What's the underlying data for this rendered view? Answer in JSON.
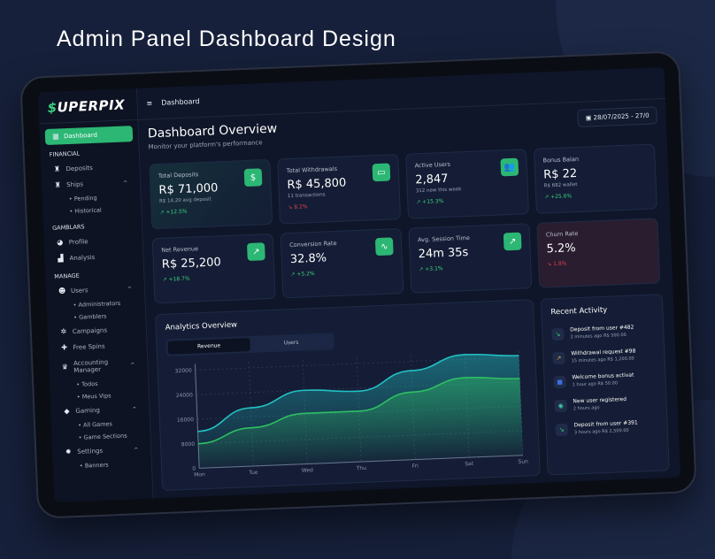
{
  "headline": "Admin Panel Dashboard Design",
  "colors": {
    "accent": "#2cb774",
    "background": "#0f1629",
    "card": "#141d35",
    "up": "#3ccf7f",
    "down": "#e0434b",
    "series_teal": "#22c1c3",
    "series_green": "#2fbf62"
  },
  "logo": {
    "prefix": "$",
    "text": "UPERPIX"
  },
  "sidebar": {
    "active": {
      "label": "Dashboard",
      "icon": "grid-icon"
    },
    "sections": [
      {
        "title": "FINANCIAL",
        "items": [
          {
            "label": "Deposits",
            "icon": "money-bag-icon"
          },
          {
            "label": "Ships",
            "icon": "money-bag-icon",
            "expanded": true,
            "children": [
              "Pending",
              "Historical"
            ]
          }
        ]
      },
      {
        "title": "GAMBLARS",
        "items": [
          {
            "label": "Profile",
            "icon": "pie-chart-icon"
          },
          {
            "label": "Analysis",
            "icon": "bar-chart-icon"
          }
        ]
      },
      {
        "title": "MANAGE",
        "items": [
          {
            "label": "Users",
            "icon": "users-icon",
            "expanded": true,
            "children": [
              "Administrators",
              "Gamblers"
            ]
          },
          {
            "label": "Campaigns",
            "icon": "sparkle-icon"
          },
          {
            "label": "Free Spins",
            "icon": "clover-icon"
          },
          {
            "label": "Accounting Manager",
            "icon": "crown-icon",
            "expanded": true,
            "children": [
              "Todos",
              "Meus Vips"
            ]
          },
          {
            "label": "Gaming",
            "icon": "dice-icon",
            "expanded": true,
            "children": [
              "All Games",
              "Game Sections"
            ]
          },
          {
            "label": "Settings",
            "icon": "gear-icon",
            "expanded": true,
            "children": [
              "Banners"
            ]
          }
        ]
      }
    ]
  },
  "topbar": {
    "menu_icon": "hamburger-icon",
    "breadcrumb": "Dashboard"
  },
  "header": {
    "title": "Dashboard Overview",
    "subtitle": "Monitor your platform's performance",
    "date_range": "28/07/2025 - 27/0"
  },
  "cards": [
    {
      "label": "Total Deposits",
      "value": "R$ 71,000",
      "note": "R$ 14.20 avg deposit",
      "trend": "+12.5%",
      "dir": "up",
      "icon": "dollar-icon",
      "glyph": "$"
    },
    {
      "label": "Total Withdrawals",
      "value": "R$ 45,800",
      "note": "11 transactions",
      "trend": "8.2%",
      "dir": "down",
      "icon": "card-icon",
      "glyph": "▭"
    },
    {
      "label": "Active Users",
      "value": "2,847",
      "note": "312 new this week",
      "trend": "+15.3%",
      "dir": "up",
      "icon": "users-icon",
      "glyph": "👥"
    },
    {
      "label": "Bonus Balan",
      "value": "R$ 22",
      "note": "R$ 682 wallet",
      "trend": "+25.6%",
      "dir": "up",
      "icon": "gift-icon",
      "glyph": ""
    },
    {
      "label": "Net Revenue",
      "value": "R$ 25,200",
      "note": "",
      "trend": "+18.7%",
      "dir": "up",
      "icon": "trending-up-icon",
      "glyph": "↗"
    },
    {
      "label": "Conversion Rate",
      "value": "32.8%",
      "note": "",
      "trend": "+5.2%",
      "dir": "up",
      "icon": "activity-icon",
      "glyph": "∿"
    },
    {
      "label": "Avg. Session Time",
      "value": "24m 35s",
      "note": "",
      "trend": "+3.1%",
      "dir": "up",
      "icon": "arrow-up-right-icon",
      "glyph": "↗"
    },
    {
      "label": "Churn Rate",
      "value": "5.2%",
      "note": "",
      "trend": "1.8%",
      "dir": "down",
      "icon": "",
      "glyph": ""
    }
  ],
  "analytics": {
    "title": "Analytics Overview",
    "tabs": [
      "Revenue",
      "Users"
    ],
    "active_tab": "Revenue"
  },
  "chart_data": {
    "type": "area",
    "categories": [
      "Mon",
      "Tue",
      "Wed",
      "Thu",
      "Fri",
      "Sat",
      "Sun"
    ],
    "yticks": [
      "0",
      "8000",
      "16000",
      "24000",
      "32000"
    ],
    "ylim": [
      0,
      34000
    ],
    "grid": true,
    "series": [
      {
        "values": [
          12000,
          19000,
          24000,
          23000,
          29000,
          33500,
          32500
        ],
        "color": "#22c1c3"
      },
      {
        "values": [
          8000,
          12500,
          16500,
          16500,
          22000,
          26000,
          25000
        ],
        "color": "#2fbf62"
      }
    ]
  },
  "activity": {
    "title": "Recent Activity",
    "items": [
      {
        "title": "Deposit from user #482",
        "time": "2 minutes ago",
        "amount": "R$ 500.00",
        "icon": "arrow-down-left-icon",
        "glyph": "↘",
        "color": "#3ccf7f"
      },
      {
        "title": "Withdrawal request #98",
        "time": "15 minutes ago",
        "amount": "R$ 1,200.00",
        "icon": "arrow-up-right-icon",
        "glyph": "↗",
        "color": "#e0b43c"
      },
      {
        "title": "Welcome bonus activat",
        "time": "1 hour ago",
        "amount": "R$ 50.00",
        "icon": "gift-icon",
        "glyph": "■",
        "color": "#3c6ee0"
      },
      {
        "title": "New user registered",
        "time": "2 hours ago",
        "amount": "",
        "icon": "user-icon",
        "glyph": "◉",
        "color": "#3ccf9f"
      },
      {
        "title": "Deposit from user #391",
        "time": "3 hours ago",
        "amount": "R$ 2,500.00",
        "icon": "arrow-down-left-icon",
        "glyph": "↘",
        "color": "#3ccf7f"
      }
    ]
  }
}
